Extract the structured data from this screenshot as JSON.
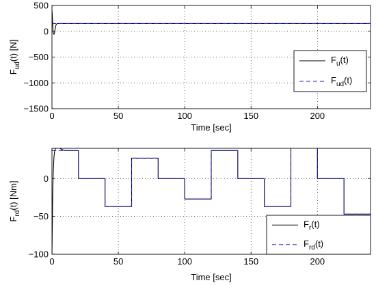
{
  "chart_data": [
    {
      "type": "line",
      "xlabel": "Time [sec]",
      "ylabel": {
        "main": "F",
        "sub": "ud",
        "rest": "(t) [N]"
      },
      "xlim": [
        0,
        240
      ],
      "ylim": [
        -1500,
        500
      ],
      "xticks": [
        0,
        50,
        100,
        150,
        200
      ],
      "yticks": [
        500,
        0,
        -500,
        -1000,
        -1500
      ],
      "grid": true,
      "legend_position": "center-right",
      "series": [
        {
          "name": {
            "main": "F",
            "sub": "u",
            "rest": "(t)"
          },
          "color": "#000000",
          "style": "solid",
          "x": [
            0,
            0.3,
            0.6,
            1,
            1.5,
            2,
            2.5,
            3,
            3.5,
            4,
            5,
            6,
            8,
            240
          ],
          "y": [
            420,
            300,
            100,
            -30,
            -60,
            -20,
            60,
            120,
            140,
            148,
            150,
            150,
            150,
            150
          ]
        },
        {
          "name": {
            "main": "F",
            "sub": "ud",
            "rest": "(t)"
          },
          "color": "#1f1fd0",
          "style": "dashed",
          "x": [
            0,
            240
          ],
          "y": [
            150,
            150
          ]
        }
      ]
    },
    {
      "type": "line",
      "xlabel": "Time [sec]",
      "ylabel": {
        "main": "F",
        "sub": "rd",
        "rest": "(t) [Nm]"
      },
      "xlim": [
        0,
        240
      ],
      "ylim": [
        -100,
        40
      ],
      "xticks": [
        0,
        50,
        100,
        150,
        200
      ],
      "yticks": [
        0,
        -50,
        -100
      ],
      "grid": true,
      "legend_position": "bottom-right",
      "series": [
        {
          "name": {
            "main": "F",
            "sub": "r",
            "rest": "(t)"
          },
          "color": "#000000",
          "style": "solid",
          "x": [
            0,
            0.3,
            0.6,
            1,
            1.5,
            2,
            3,
            4,
            5,
            6,
            8,
            10,
            14,
            20,
            20,
            40,
            40,
            60,
            60,
            80,
            80,
            100,
            100,
            120,
            120,
            140,
            140,
            160,
            160,
            180,
            180,
            200,
            200,
            220,
            220,
            240
          ],
          "y": [
            -100,
            -60,
            -20,
            10,
            28,
            36,
            42,
            43,
            42,
            40,
            38,
            37,
            37,
            37,
            0,
            0,
            -37,
            -37,
            27,
            27,
            0,
            0,
            -27,
            -27,
            37,
            37,
            0,
            0,
            -37,
            -37,
            50,
            50,
            0,
            0,
            -47,
            -47
          ]
        },
        {
          "name": {
            "main": "F",
            "sub": "rd",
            "rest": "(t)"
          },
          "color": "#1f1fd0",
          "style": "dashed",
          "x": [
            0,
            20,
            20,
            40,
            40,
            60,
            60,
            80,
            80,
            100,
            100,
            120,
            120,
            140,
            140,
            160,
            160,
            180,
            180,
            200,
            200,
            220,
            220,
            240
          ],
          "y": [
            37,
            37,
            0,
            0,
            -37,
            -37,
            27,
            27,
            0,
            0,
            -27,
            -27,
            37,
            37,
            0,
            0,
            -37,
            -37,
            50,
            50,
            0,
            0,
            -47,
            -47
          ]
        }
      ]
    }
  ]
}
